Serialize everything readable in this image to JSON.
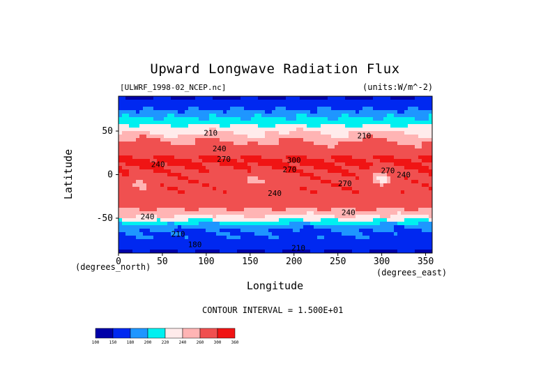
{
  "title": "Upward Longwave Radiation Flux",
  "file_label": "[ULWRF_1998-02_NCEP.nc]",
  "units_label": "(units:W/m^-2)",
  "contour_interval": "CONTOUR INTERVAL = 1.500E+01",
  "colors": {
    "levels": [
      "#0000a8",
      "#0028f0",
      "#1e96ff",
      "#00f0f0",
      "#ffebeb",
      "#ffb4b4",
      "#f05050",
      "#f01414"
    ]
  },
  "chart_data": {
    "type": "heatmap",
    "title": "Upward Longwave Radiation Flux",
    "xlabel": "Longitude",
    "ylabel": "Latitude",
    "x_units": "(degrees_east)",
    "y_units": "(degrees_north)",
    "xlim": [
      0,
      357.5
    ],
    "ylim": [
      -90,
      90
    ],
    "x_ticks": [
      0,
      50,
      100,
      150,
      200,
      250,
      300,
      350
    ],
    "y_ticks": [
      -50,
      0,
      50
    ],
    "colorbar_ticks": [
      "100",
      "150",
      "180",
      "200",
      "220",
      "240",
      "260",
      "300",
      "360"
    ],
    "contour_labels": [
      {
        "text": "210",
        "lon": 105,
        "lat": 48
      },
      {
        "text": "240",
        "lon": 115,
        "lat": 30
      },
      {
        "text": "270",
        "lon": 120,
        "lat": 18
      },
      {
        "text": "300",
        "lon": 200,
        "lat": 17
      },
      {
        "text": "270",
        "lon": 195,
        "lat": 6
      },
      {
        "text": "240",
        "lon": 178,
        "lat": -21
      },
      {
        "text": "270",
        "lon": 258,
        "lat": -10
      },
      {
        "text": "240",
        "lon": 262,
        "lat": -43
      },
      {
        "text": "240",
        "lon": 33,
        "lat": -48
      },
      {
        "text": "210",
        "lon": 68,
        "lat": -68
      },
      {
        "text": "180",
        "lon": 87,
        "lat": -80
      },
      {
        "text": "210",
        "lon": 205,
        "lat": -84
      },
      {
        "text": "270",
        "lon": 307,
        "lat": 5
      },
      {
        "text": "240",
        "lon": 325,
        "lat": 0
      },
      {
        "text": "210",
        "lon": 280,
        "lat": 45
      },
      {
        "text": "240",
        "lon": 45,
        "lat": 12
      }
    ]
  }
}
